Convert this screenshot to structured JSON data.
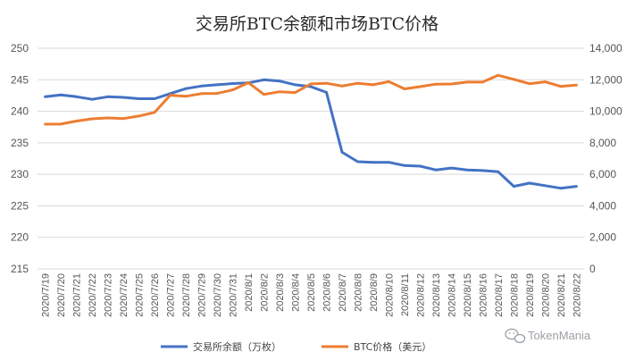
{
  "chart_data": {
    "type": "line",
    "title": "交易所BTC余额和市场BTC价格",
    "categories": [
      "2020/7/19",
      "2020/7/20",
      "2020/7/21",
      "2020/7/22",
      "2020/7/23",
      "2020/7/24",
      "2020/7/25",
      "2020/7/26",
      "2020/7/27",
      "2020/7/28",
      "2020/7/29",
      "2020/7/30",
      "2020/7/31",
      "2020/8/1",
      "2020/8/2",
      "2020/8/3",
      "2020/8/4",
      "2020/8/5",
      "2020/8/6",
      "2020/8/7",
      "2020/8/8",
      "2020/8/9",
      "2020/8/10",
      "2020/8/11",
      "2020/8/12",
      "2020/8/13",
      "2020/8/14",
      "2020/8/15",
      "2020/8/16",
      "2020/8/17",
      "2020/8/18",
      "2020/8/19",
      "2020/8/20",
      "2020/8/21",
      "2020/8/22"
    ],
    "y_left": {
      "min": 215,
      "max": 250,
      "step": 5,
      "ticks": [
        "215",
        "220",
        "225",
        "230",
        "235",
        "240",
        "245",
        "250"
      ]
    },
    "y_right": {
      "min": 0,
      "max": 14000,
      "step": 2000,
      "ticks": [
        "0",
        "2,000",
        "4,000",
        "6,000",
        "8,000",
        "10,000",
        "12,000",
        "14,000"
      ]
    },
    "grid": true,
    "legend_position": "bottom",
    "series": [
      {
        "name": "交易所余额（万枚）",
        "axis": "left",
        "color": "#4472C4",
        "values": [
          242.3,
          242.6,
          242.3,
          241.9,
          242.3,
          242.2,
          242.0,
          242.0,
          242.8,
          243.6,
          244.0,
          244.2,
          244.4,
          244.5,
          245.0,
          244.8,
          244.2,
          243.9,
          243.0,
          233.5,
          232.0,
          231.9,
          231.9,
          231.4,
          231.3,
          230.7,
          231.0,
          230.7,
          230.6,
          230.4,
          228.1,
          228.6,
          228.2,
          227.8,
          228.1
        ]
      },
      {
        "name": "BTC价格（美元）",
        "axis": "right",
        "color": "#ED7D31",
        "values": [
          9180,
          9190,
          9380,
          9520,
          9580,
          9540,
          9700,
          9930,
          11020,
          10950,
          11120,
          11130,
          11360,
          11810,
          11070,
          11240,
          11190,
          11740,
          11780,
          11600,
          11780,
          11680,
          11880,
          11420,
          11560,
          11720,
          11730,
          11850,
          11850,
          12280,
          12030,
          11750,
          11870,
          11580,
          11660
        ]
      }
    ]
  },
  "watermark": {
    "text": "TokenMania",
    "icon": "wechat-icon"
  }
}
